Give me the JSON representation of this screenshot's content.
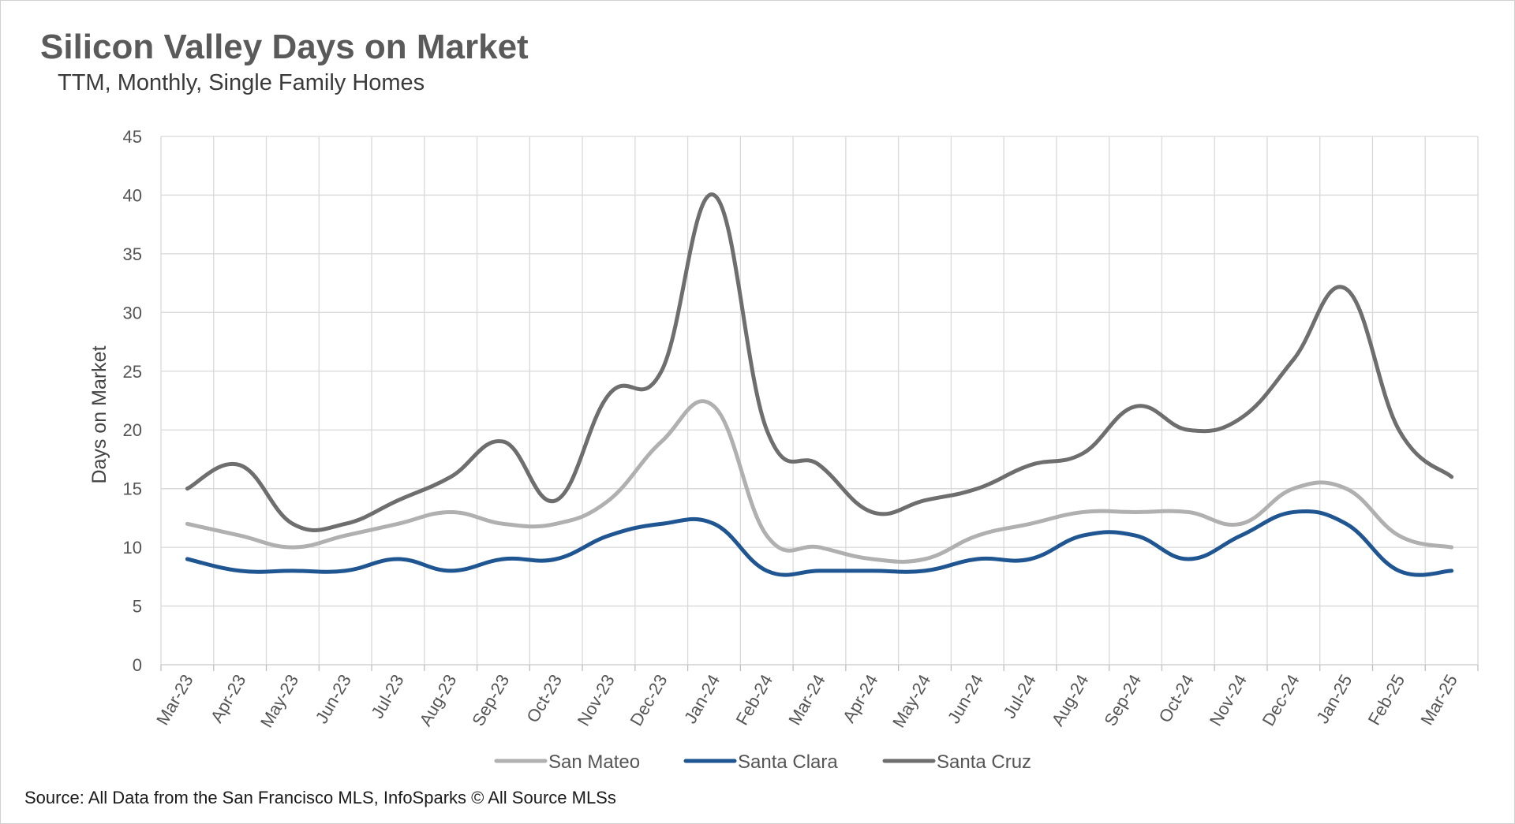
{
  "title": "Silicon Valley Days on Market",
  "subtitle": "TTM, Monthly, Single Family Homes",
  "source": "Source: All Data from the San Francisco MLS, InfoSparks © All Source MLSs",
  "chart_data": {
    "type": "line",
    "title": "Silicon Valley Days on Market",
    "subtitle": "TTM, Monthly, Single Family Homes",
    "ylabel": "Days on Market",
    "ylim": [
      0,
      45
    ],
    "yticks": [
      0,
      5,
      10,
      15,
      20,
      25,
      30,
      35,
      40,
      45
    ],
    "grid": true,
    "legend": "bottom",
    "categories": [
      "Mar-23",
      "Apr-23",
      "May-23",
      "Jun-23",
      "Jul-23",
      "Aug-23",
      "Sep-23",
      "Oct-23",
      "Nov-23",
      "Dec-23",
      "Jan-24",
      "Feb-24",
      "Mar-24",
      "Apr-24",
      "May-24",
      "Jun-24",
      "Jul-24",
      "Aug-24",
      "Sep-24",
      "Oct-24",
      "Nov-24",
      "Dec-24",
      "Jan-25",
      "Feb-25",
      "Mar-25"
    ],
    "series": [
      {
        "name": "San Mateo",
        "color": "#b0b0b0",
        "values": [
          12,
          11,
          10,
          11,
          12,
          13,
          12,
          12,
          14,
          19,
          22,
          11,
          10,
          9,
          9,
          11,
          12,
          13,
          13,
          13,
          12,
          15,
          15,
          11,
          10
        ]
      },
      {
        "name": "Santa Clara",
        "color": "#1f5591",
        "values": [
          9,
          8,
          8,
          8,
          9,
          8,
          9,
          9,
          11,
          12,
          12,
          8,
          8,
          8,
          8,
          9,
          9,
          11,
          11,
          9,
          11,
          13,
          12,
          8,
          8
        ]
      },
      {
        "name": "Santa Cruz",
        "color": "#6e6e6e",
        "values": [
          15,
          17,
          12,
          12,
          14,
          16,
          19,
          14,
          23,
          25,
          40,
          20,
          17,
          13,
          14,
          15,
          17,
          18,
          22,
          20,
          21,
          26,
          32,
          20,
          16
        ]
      }
    ]
  }
}
